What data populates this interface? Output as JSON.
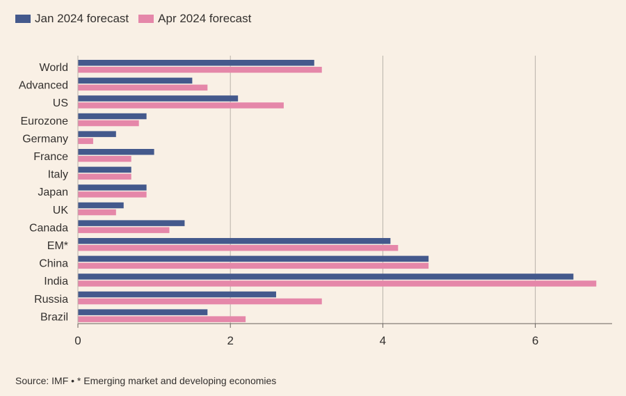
{
  "chart_data": {
    "type": "bar",
    "orientation": "horizontal",
    "title": "",
    "xlabel": "",
    "ylabel": "",
    "xlim": [
      0,
      7
    ],
    "xticks": [
      "0",
      "2",
      "4",
      "6"
    ],
    "grid": true,
    "legend_position": "top-left",
    "categories": [
      "World",
      "Advanced",
      "US",
      "Eurozone",
      "Germany",
      "France",
      "Italy",
      "Japan",
      "UK",
      "Canada",
      "EM*",
      "China",
      "India",
      "Russia",
      "Brazil"
    ],
    "series": [
      {
        "name": "Jan 2024 forecast",
        "color": "#44598c",
        "values": [
          3.1,
          1.5,
          2.1,
          0.9,
          0.5,
          1.0,
          0.7,
          0.9,
          0.6,
          1.4,
          4.1,
          4.6,
          6.5,
          2.6,
          1.7
        ]
      },
      {
        "name": "Apr 2024 forecast",
        "color": "#e587a9",
        "values": [
          3.2,
          1.7,
          2.7,
          0.8,
          0.2,
          0.7,
          0.7,
          0.9,
          0.5,
          1.2,
          4.2,
          4.6,
          6.8,
          3.2,
          2.2
        ]
      }
    ],
    "source": "Source: IMF • * Emerging market and developing economies"
  }
}
